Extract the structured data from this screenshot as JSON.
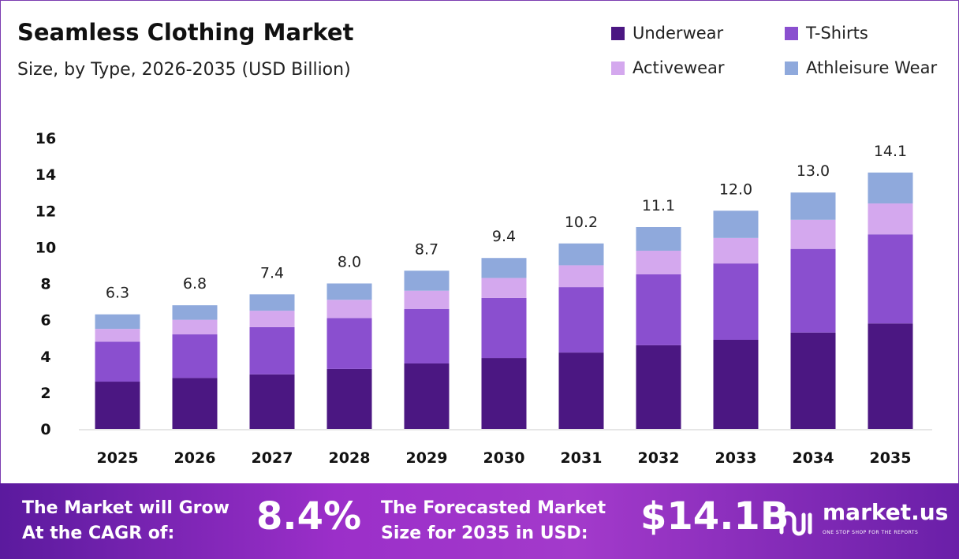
{
  "chart_data": {
    "type": "bar",
    "stacked": true,
    "title": "Seamless Clothing Market",
    "subtitle": "Size, by Type, 2026-2035 (USD Billion)",
    "categories": [
      "2025",
      "2026",
      "2027",
      "2028",
      "2029",
      "2030",
      "2031",
      "2032",
      "2033",
      "2034",
      "2035"
    ],
    "series": [
      {
        "name": "Underwear",
        "color": "#4b1782",
        "values": [
          2.6,
          2.8,
          3.0,
          3.3,
          3.6,
          3.9,
          4.2,
          4.6,
          4.9,
          5.3,
          5.8
        ]
      },
      {
        "name": "T-Shirts",
        "color": "#8a4fcf",
        "values": [
          2.2,
          2.4,
          2.6,
          2.8,
          3.0,
          3.3,
          3.6,
          3.9,
          4.2,
          4.6,
          4.9
        ]
      },
      {
        "name": "Activewear",
        "color": "#d4a8ee",
        "values": [
          0.7,
          0.8,
          0.9,
          1.0,
          1.0,
          1.1,
          1.2,
          1.3,
          1.4,
          1.6,
          1.7
        ]
      },
      {
        "name": "Athleisure Wear",
        "color": "#8fa9dc",
        "values": [
          0.8,
          0.8,
          0.9,
          0.9,
          1.1,
          1.1,
          1.2,
          1.3,
          1.5,
          1.5,
          1.7
        ]
      }
    ],
    "totals": [
      "6.3",
      "6.8",
      "7.4",
      "8.0",
      "8.7",
      "9.4",
      "10.2",
      "11.1",
      "12.0",
      "13.0",
      "14.1"
    ],
    "yticks": [
      "0",
      "2",
      "4",
      "6",
      "8",
      "10",
      "12",
      "14",
      "16"
    ],
    "ylim": [
      0,
      16
    ],
    "grid": false,
    "legend": "top-right"
  },
  "banner": {
    "cagr_label_1": "The Market will Grow",
    "cagr_label_2": "At the CAGR of:",
    "cagr_value": "8.4%",
    "forecast_label_1": "The Forecasted Market",
    "forecast_label_2": "Size for 2035 in USD:",
    "forecast_value": "$14.1B",
    "logo_text": "market.us",
    "logo_tagline": "ONE STOP SHOP FOR THE REPORTS"
  }
}
